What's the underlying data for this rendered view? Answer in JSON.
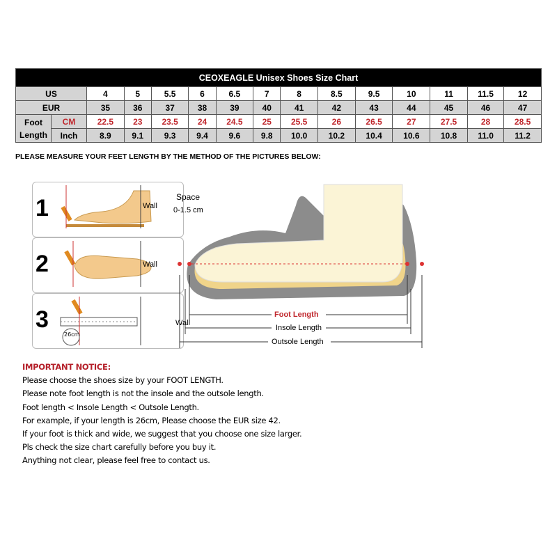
{
  "chart": {
    "title": "CEOXEAGLE Unisex Shoes Size Chart",
    "us_label": "US",
    "eur_label": "EUR",
    "foot_label": "Foot",
    "length_label": "Length",
    "cm_label": "CM",
    "inch_label": "Inch",
    "us": [
      "4",
      "5",
      "5.5",
      "6",
      "6.5",
      "7",
      "8",
      "8.5",
      "9.5",
      "10",
      "11",
      "11.5",
      "12"
    ],
    "eur": [
      "35",
      "36",
      "37",
      "38",
      "39",
      "40",
      "41",
      "42",
      "43",
      "44",
      "45",
      "46",
      "47"
    ],
    "cm": [
      "22.5",
      "23",
      "23.5",
      "24",
      "24.5",
      "25",
      "25.5",
      "26",
      "26.5",
      "27",
      "27.5",
      "28",
      "28.5"
    ],
    "inch": [
      "8.9",
      "9.1",
      "9.3",
      "9.4",
      "9.6",
      "9.8",
      "10.0",
      "10.2",
      "10.4",
      "10.6",
      "10.8",
      "11.0",
      "11.2"
    ]
  },
  "instruction": "PLEASE MEASURE YOUR FEET LENGTH BY THE METHOD OF THE PICTURES BELOW:",
  "steps": [
    {
      "n": "1",
      "wall": "Wall"
    },
    {
      "n": "2",
      "wall": "Wall"
    },
    {
      "n": "3",
      "wall": "Wall",
      "ruler": "26cm"
    }
  ],
  "diagram": {
    "space": "Space",
    "space_range": "0-1.5 cm",
    "foot_length": "Foot Length",
    "insole": "Insole Length",
    "outsole": "Outsole Length"
  },
  "notice": {
    "heading": "IMPORTANT NOTICE:",
    "lines": [
      "Please choose the shoes size by your FOOT LENGTH.",
      "Please note foot length is not the insole and the outsole length.",
      "Foot length < Insole Length < Outsole Length.",
      "For example, if your length is 26cm, Please choose the EUR size 42.",
      "If your foot is thick and wide, we suggest that you choose one size larger.",
      "Pls check the size chart carefully before you buy it.",
      "Anything not clear, please feel free to contact us."
    ]
  }
}
